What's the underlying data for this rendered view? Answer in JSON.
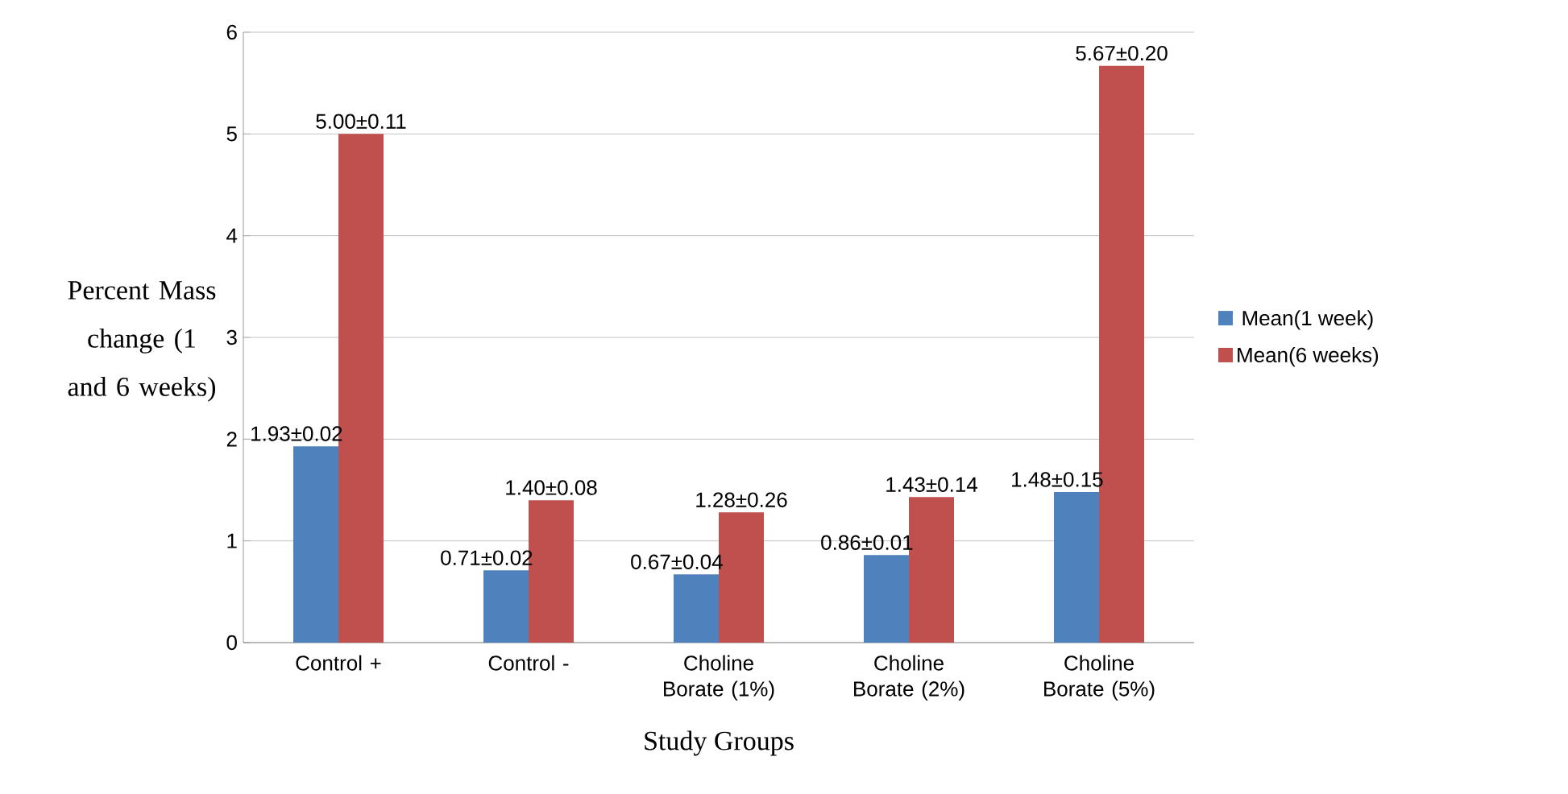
{
  "chart_data": {
    "type": "bar",
    "xlabel": "Study Groups",
    "ylabel": "Percent Mass change (1 and 6 weeks)",
    "categories": [
      "Control +",
      "Control -",
      "Choline Borate (1%)",
      "Choline Borate (2%)",
      "Choline Borate (5%)"
    ],
    "series": [
      {
        "name": "Mean(1 week)",
        "color": "#4f81bd",
        "values": [
          1.93,
          0.71,
          0.67,
          0.86,
          1.48
        ],
        "value_labels": [
          "1.93±0.02",
          "0.71±0.02",
          "0.67±0.04",
          "0.86±0.01",
          "1.48±0.15"
        ]
      },
      {
        "name": "Mean(6 weeks)",
        "color": "#c0504d",
        "values": [
          5.0,
          1.4,
          1.28,
          1.43,
          5.67
        ],
        "value_labels": [
          "5.00±0.11",
          "1.40±0.08",
          "1.28±0.26",
          "1.43±0.14",
          "5.67±0.20"
        ]
      }
    ],
    "ylim": [
      0,
      6
    ],
    "yticks": [
      0,
      1,
      2,
      3,
      4,
      5,
      6
    ],
    "grid": "y",
    "legend": "right"
  }
}
